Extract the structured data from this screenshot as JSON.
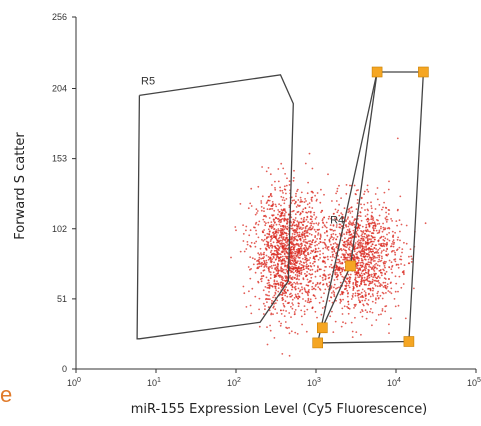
{
  "chart_data": {
    "type": "scatter",
    "title": "",
    "xlabel": "miR-155 Expression Level (Cy5 Fluorescence)",
    "ylabel": "Forward S catter",
    "x_scale": "log",
    "xlim": [
      1,
      100000
    ],
    "ylim": [
      0,
      256
    ],
    "x_ticks": [
      {
        "value": 1,
        "base": "10",
        "exp": "0"
      },
      {
        "value": 10,
        "base": "10",
        "exp": "1"
      },
      {
        "value": 100,
        "base": "10",
        "exp": "2"
      },
      {
        "value": 1000,
        "base": "10",
        "exp": "3"
      },
      {
        "value": 10000,
        "base": "10",
        "exp": "4"
      },
      {
        "value": 100000,
        "base": "10",
        "exp": "5"
      }
    ],
    "y_ticks": [
      0,
      51,
      102,
      153,
      204,
      256
    ],
    "grid": false,
    "point_color": "#d9281f",
    "point_clusters": [
      {
        "x_center": 450,
        "y_center": 84,
        "count": 1500,
        "log_sigma_x": 0.22,
        "sigma_y": 22
      },
      {
        "x_center": 3500,
        "y_center": 82,
        "count": 1300,
        "log_sigma_x": 0.25,
        "sigma_y": 20
      }
    ],
    "gates": [
      {
        "label": "R5",
        "label_at": {
          "x": 6.5,
          "y": 207
        },
        "vertices": [
          [
            6.2,
            199
          ],
          [
            360,
            214
          ],
          [
            520,
            193
          ],
          [
            450,
            64
          ],
          [
            200,
            34
          ],
          [
            6.2,
            22
          ],
          [
            5.8,
            22
          ],
          [
            6.2,
            199
          ]
        ],
        "handles": false
      },
      {
        "label": "R4",
        "label_at": {
          "x": 1500,
          "y": 106
        },
        "vertices": [
          [
            5800,
            216
          ],
          [
            22000,
            216
          ],
          [
            14500,
            20
          ],
          [
            1050,
            19
          ],
          [
            5800,
            216
          ]
        ],
        "handles": true,
        "handle_points": [
          [
            5800,
            216
          ],
          [
            22000,
            216
          ],
          [
            14500,
            20
          ],
          [
            1050,
            19
          ],
          [
            1200,
            30
          ],
          [
            2700,
            75
          ]
        ],
        "extra_segment": [
          [
            1200,
            30
          ],
          [
            2700,
            75
          ],
          [
            5800,
            216
          ]
        ]
      }
    ],
    "handle_color": "#f5a623"
  },
  "stray_letter": "e"
}
